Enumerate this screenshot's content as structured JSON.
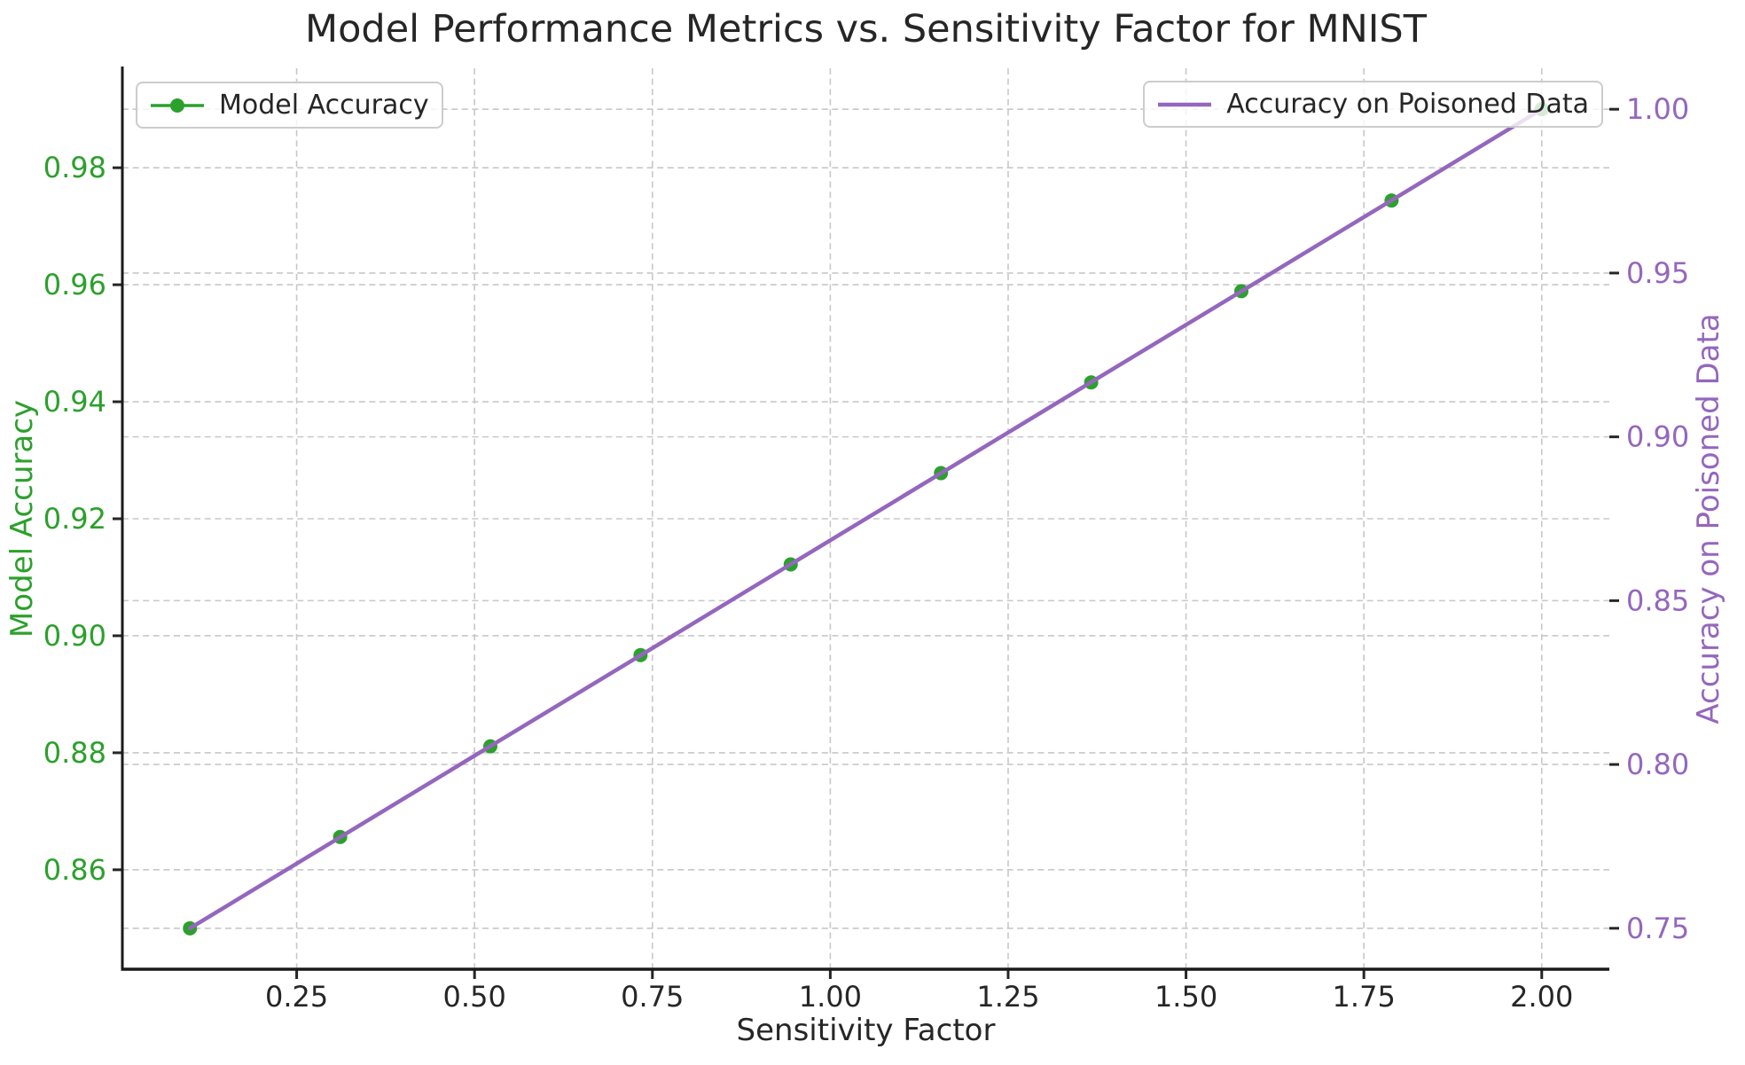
{
  "chart_data": {
    "type": "line",
    "title": "Model Performance Metrics vs. Sensitivity Factor for MNIST",
    "xlabel": "Sensitivity Factor",
    "x": [
      0.1,
      0.3111,
      0.5222,
      0.7333,
      0.9444,
      1.1556,
      1.3667,
      1.5778,
      1.7889,
      2.0
    ],
    "series": [
      {
        "name": "Model Accuracy",
        "axis": "left",
        "color": "#2ca02c",
        "marker": "circle",
        "marker_radius": 8,
        "line_width": 3.5,
        "values": [
          0.85,
          0.8656,
          0.8811,
          0.8967,
          0.9122,
          0.9278,
          0.9433,
          0.9589,
          0.9744,
          0.99
        ]
      },
      {
        "name": "Accuracy on Poisoned Data",
        "axis": "right",
        "color": "#9467bd",
        "marker": "none",
        "marker_radius": 0,
        "line_width": 4.5,
        "values": [
          0.75,
          0.7778,
          0.8056,
          0.8333,
          0.8611,
          0.8889,
          0.9167,
          0.9444,
          0.9722,
          1.0
        ]
      }
    ],
    "axes": {
      "x": {
        "lim": [
          0.005,
          2.095
        ],
        "ticks": [
          0.25,
          0.5,
          0.75,
          1.0,
          1.25,
          1.5,
          1.75,
          2.0
        ],
        "tick_labels": [
          "0.25",
          "0.50",
          "0.75",
          "1.00",
          "1.25",
          "1.50",
          "1.75",
          "2.00"
        ],
        "tick_color": "#262626"
      },
      "left": {
        "label": "Model Accuracy",
        "color": "#2ca02c",
        "lim": [
          0.843,
          0.997
        ],
        "ticks": [
          0.86,
          0.88,
          0.9,
          0.92,
          0.94,
          0.96,
          0.98
        ],
        "tick_labels": [
          "0.86",
          "0.88",
          "0.90",
          "0.92",
          "0.94",
          "0.96",
          "0.98"
        ]
      },
      "right": {
        "label": "Accuracy on Poisoned Data",
        "color": "#9467bd",
        "lim": [
          0.7375,
          1.0125
        ],
        "ticks": [
          0.75,
          0.8,
          0.85,
          0.9,
          0.95,
          1.0
        ],
        "tick_labels": [
          "0.75",
          "0.80",
          "0.85",
          "0.90",
          "0.95",
          "1.00"
        ]
      }
    },
    "grid": {
      "visible": true,
      "style": "dashed",
      "color": "#c8c8c8"
    },
    "legend": {
      "position_left": "upper left",
      "position_right": "upper right"
    },
    "legends": [
      {
        "label": "Model Accuracy"
      },
      {
        "label": "Accuracy on Poisoned Data"
      }
    ]
  },
  "style_colors": {
    "title": "#262626",
    "spine": "#1a1a1a",
    "tick_mark": "#262626",
    "background": "#ffffff"
  }
}
